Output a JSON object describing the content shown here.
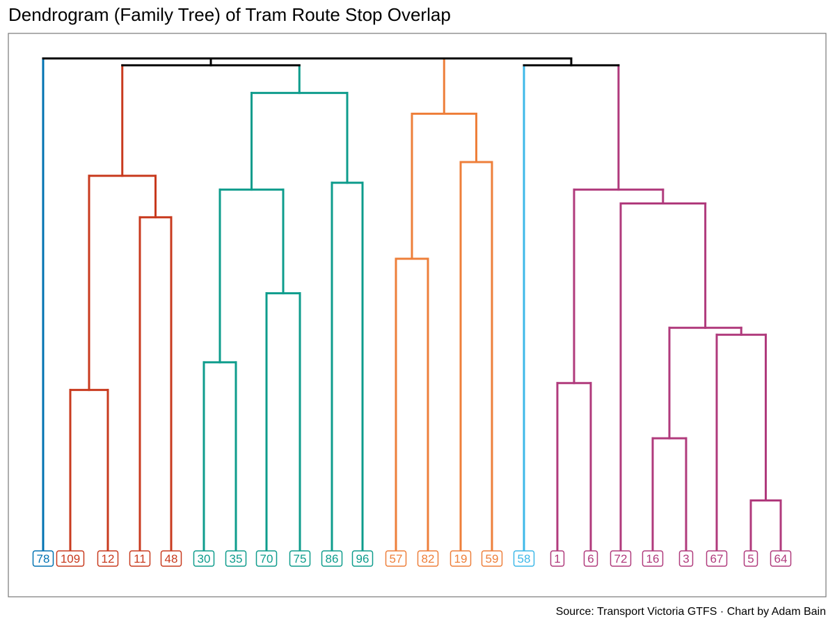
{
  "chart_data": {
    "type": "dendrogram",
    "title": "Dendrogram (Family Tree) of Tram Route Stop Overlap",
    "caption": "Source: Transport Victoria GTFS · Chart by Adam Bain",
    "leaves": [
      "78",
      "109",
      "12",
      "11",
      "48",
      "30",
      "35",
      "70",
      "75",
      "86",
      "96",
      "57",
      "82",
      "19",
      "59",
      "58",
      "1",
      "6",
      "72",
      "16",
      "3",
      "67",
      "5",
      "64"
    ],
    "clusters": [
      {
        "leaves": [
          "78"
        ],
        "color": "#0072B2"
      },
      {
        "leaves": [
          "109",
          "12",
          "11",
          "48"
        ],
        "color": "#C83A1E"
      },
      {
        "leaves": [
          "30",
          "35",
          "70",
          "75",
          "86",
          "96"
        ],
        "color": "#0E9C8C"
      },
      {
        "leaves": [
          "57",
          "82",
          "19",
          "59"
        ],
        "color": "#EE7F3A"
      },
      {
        "leaves": [
          "58"
        ],
        "color": "#3DB8E8"
      },
      {
        "leaves": [
          "1",
          "6",
          "72",
          "16",
          "3",
          "67",
          "5",
          "64"
        ],
        "color": "#B03A7C"
      }
    ],
    "root_color": "#000000",
    "merges": [
      {
        "id": "m1",
        "a": "109",
        "b": "12",
        "height": 0.52,
        "color": "#C83A1E"
      },
      {
        "id": "m2",
        "a": "11",
        "b": "48",
        "height": 0.77,
        "color": "#C83A1E"
      },
      {
        "id": "m3",
        "a": "m1",
        "b": "m2",
        "height": 0.83,
        "color": "#C83A1E"
      },
      {
        "id": "m4",
        "a": "30",
        "b": "35",
        "height": 0.56,
        "color": "#0E9C8C"
      },
      {
        "id": "m5",
        "a": "70",
        "b": "75",
        "height": 0.66,
        "color": "#0E9C8C"
      },
      {
        "id": "m6",
        "a": "m4",
        "b": "m5",
        "height": 0.81,
        "color": "#0E9C8C"
      },
      {
        "id": "m7",
        "a": "86",
        "b": "96",
        "height": 0.82,
        "color": "#0E9C8C"
      },
      {
        "id": "m8",
        "a": "m6",
        "b": "m7",
        "height": 0.95,
        "color": "#0E9C8C"
      },
      {
        "id": "m9",
        "a": "m3",
        "b": "m8",
        "height": 0.99,
        "color": "#000000"
      },
      {
        "id": "m10",
        "a": "57",
        "b": "82",
        "height": 0.71,
        "color": "#EE7F3A"
      },
      {
        "id": "m11",
        "a": "19",
        "b": "59",
        "height": 0.85,
        "color": "#EE7F3A"
      },
      {
        "id": "m12",
        "a": "m10",
        "b": "m11",
        "height": 0.92,
        "color": "#EE7F3A"
      },
      {
        "id": "m13",
        "a": "1",
        "b": "6",
        "height": 0.53,
        "color": "#B03A7C"
      },
      {
        "id": "m14",
        "a": "16",
        "b": "3",
        "height": 0.45,
        "color": "#B03A7C"
      },
      {
        "id": "m15",
        "a": "5",
        "b": "64",
        "height": 0.36,
        "color": "#B03A7C"
      },
      {
        "id": "m16",
        "a": "67",
        "b": "m15",
        "height": 0.6,
        "color": "#B03A7C"
      },
      {
        "id": "m17",
        "a": "m14",
        "b": "m16",
        "height": 0.61,
        "color": "#B03A7C"
      },
      {
        "id": "m18",
        "a": "72",
        "b": "m17",
        "height": 0.79,
        "color": "#B03A7C"
      },
      {
        "id": "m19",
        "a": "m13",
        "b": "m18",
        "height": 0.81,
        "color": "#B03A7C"
      },
      {
        "id": "m20",
        "a": "m19",
        "b": "58",
        "height": 0.99,
        "color": "#000000"
      },
      {
        "id": "m21",
        "a": "m12",
        "b": "m20",
        "height": 1.0,
        "color": "#000000"
      },
      {
        "id": "m22",
        "a": "m9",
        "b": "m21",
        "height": 1.0,
        "color": "#000000"
      },
      {
        "id": "m23",
        "a": "78",
        "b": "m22",
        "height": 1.0,
        "color": "#000000"
      }
    ],
    "ylim": [
      0,
      1
    ]
  }
}
